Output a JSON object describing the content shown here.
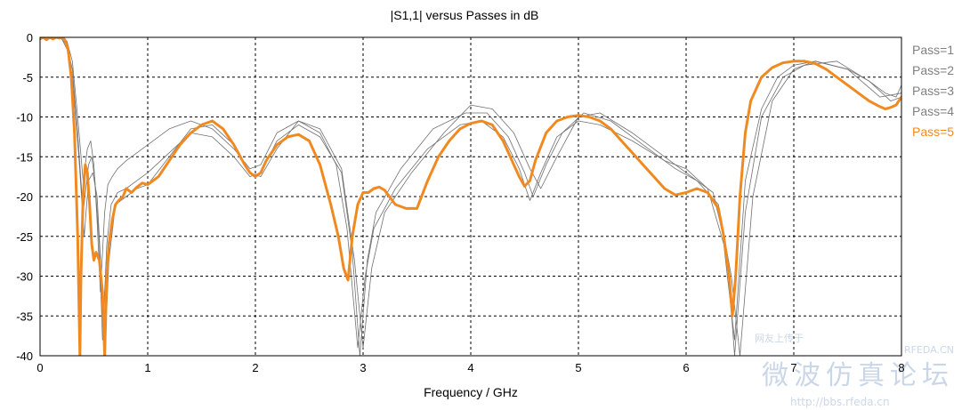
{
  "chart_data": {
    "type": "line",
    "title": "|S1,1| versus Passes in dB",
    "xlabel": "Frequency / GHz",
    "ylabel": "",
    "xlim": [
      0,
      8
    ],
    "ylim": [
      -40,
      0
    ],
    "x_ticks": [
      0,
      1,
      2,
      3,
      4,
      5,
      6,
      7,
      8
    ],
    "y_ticks": [
      0,
      -5,
      -10,
      -15,
      -20,
      -25,
      -30,
      -35,
      -40
    ],
    "x_tick_labels": [
      "0",
      "1",
      "2",
      "3",
      "4",
      "5",
      "6",
      "7",
      "8"
    ],
    "y_tick_labels": [
      "0",
      "-5",
      "-10",
      "-15",
      "-20",
      "-25",
      "-30",
      "-35",
      "-40"
    ],
    "grid": true,
    "legend_position": "right",
    "series": [
      {
        "name": "Pass=1",
        "color": "#707070",
        "width": 0.8,
        "x": [
          0,
          0.1,
          0.2,
          0.25,
          0.3,
          0.35,
          0.4,
          0.44,
          0.47,
          0.5,
          0.53,
          0.56,
          0.6,
          0.63,
          0.67,
          0.72,
          0.8,
          0.9,
          1.0,
          1.2,
          1.4,
          1.6,
          1.8,
          1.95,
          2.05,
          2.2,
          2.4,
          2.6,
          2.75,
          2.85,
          2.95,
          3.02,
          3.1,
          3.3,
          3.6,
          3.9,
          4.1,
          4.3,
          4.45,
          4.55,
          4.65,
          4.8,
          5.0,
          5.2,
          5.5,
          5.8,
          6.0,
          6.2,
          6.35,
          6.45,
          6.55,
          6.7,
          6.85,
          7.0,
          7.2,
          7.5,
          7.7,
          7.85,
          7.95,
          8.0
        ],
        "y": [
          0,
          0,
          0,
          -0.5,
          -3,
          -10,
          -18,
          -14,
          -13,
          -16,
          -23,
          -32,
          -22,
          -18.5,
          -17.5,
          -16.5,
          -15.5,
          -14.5,
          -13.5,
          -11.5,
          -10.5,
          -11.5,
          -14,
          -16.5,
          -16,
          -12,
          -10.5,
          -12,
          -16,
          -24,
          -39,
          -30,
          -24,
          -19,
          -14,
          -11,
          -10.5,
          -12.5,
          -16.5,
          -20.5,
          -17,
          -12.5,
          -10.5,
          -11,
          -13,
          -15.5,
          -16.5,
          -19,
          -26,
          -38,
          -18,
          -9,
          -5,
          -3.5,
          -3,
          -4,
          -5.5,
          -7,
          -7.5,
          -6
        ],
        "visible": true
      },
      {
        "name": "Pass=2",
        "color": "#707070",
        "width": 0.8,
        "x": [
          0,
          0.1,
          0.2,
          0.25,
          0.3,
          0.35,
          0.4,
          0.45,
          0.48,
          0.51,
          0.55,
          0.58,
          0.62,
          0.66,
          0.72,
          0.8,
          0.9,
          1.0,
          1.2,
          1.4,
          1.6,
          1.8,
          1.95,
          2.05,
          2.2,
          2.4,
          2.6,
          2.8,
          2.9,
          2.97,
          3.04,
          3.12,
          3.35,
          3.65,
          3.95,
          4.15,
          4.35,
          4.5,
          4.58,
          4.7,
          4.85,
          5.05,
          5.3,
          5.6,
          5.9,
          6.1,
          6.3,
          6.42,
          6.5,
          6.62,
          6.8,
          7.0,
          7.2,
          7.5,
          7.8,
          8.0
        ],
        "y": [
          0,
          0,
          -0.2,
          -1,
          -4,
          -12,
          -22,
          -16,
          -15,
          -18,
          -26,
          -38,
          -26,
          -21,
          -19.5,
          -19,
          -18,
          -17,
          -14.5,
          -12,
          -12.5,
          -15,
          -17.5,
          -17,
          -13,
          -11,
          -12.5,
          -17,
          -27,
          -40,
          -28,
          -22,
          -16.5,
          -11.5,
          -9.5,
          -9.5,
          -12.5,
          -17,
          -20,
          -16,
          -12,
          -9.5,
          -10.5,
          -13.5,
          -16.5,
          -18,
          -21,
          -30,
          -40,
          -20,
          -8,
          -4,
          -3,
          -4,
          -7.5,
          -7
        ],
        "visible": true
      },
      {
        "name": "Pass=3",
        "color": "#707070",
        "width": 0.8,
        "x": [
          0,
          0.1,
          0.2,
          0.25,
          0.3,
          0.36,
          0.41,
          0.45,
          0.49,
          0.53,
          0.57,
          0.6,
          0.64,
          0.7,
          0.8,
          0.9,
          1.0,
          1.2,
          1.4,
          1.6,
          1.8,
          1.95,
          2.05,
          2.2,
          2.4,
          2.6,
          2.8,
          2.92,
          3.0,
          3.08,
          3.2,
          3.45,
          3.75,
          4.0,
          4.2,
          4.4,
          4.55,
          4.65,
          4.8,
          5.0,
          5.2,
          5.5,
          5.8,
          6.05,
          6.25,
          6.38,
          6.45,
          6.55,
          6.7,
          6.9,
          7.1,
          7.4,
          7.7,
          7.9,
          8.0
        ],
        "y": [
          0,
          0,
          -0.1,
          -1.5,
          -5,
          -15,
          -25,
          -18,
          -17,
          -20,
          -30,
          -40,
          -28,
          -21,
          -20,
          -19,
          -18.5,
          -15,
          -11.5,
          -11,
          -13.5,
          -17,
          -17.5,
          -14,
          -10.5,
          -11.5,
          -16.5,
          -28,
          -39,
          -29,
          -22,
          -17,
          -12,
          -8.5,
          -9,
          -12,
          -16.5,
          -19,
          -15,
          -10,
          -9.5,
          -12,
          -15,
          -17.5,
          -19.5,
          -27,
          -40,
          -22,
          -10,
          -5,
          -3.5,
          -3,
          -5.5,
          -8,
          -7.5
        ],
        "visible": true
      },
      {
        "name": "Pass=4",
        "color": "#808080",
        "width": 0.8,
        "x": [
          0,
          0.1,
          0.2,
          0.25,
          0.3,
          0.36,
          0.4,
          0.44,
          0.48,
          0.52,
          0.56,
          0.59,
          0.62,
          0.68,
          0.8,
          1.0,
          1.2,
          1.4,
          1.6,
          1.8,
          2.0,
          2.2,
          2.4,
          2.6,
          2.75,
          2.85,
          2.95,
          3.1,
          3.3,
          3.5,
          3.8,
          4.1,
          4.3,
          4.5,
          4.7,
          5.0,
          5.3,
          5.6,
          5.9,
          6.1,
          6.3,
          6.42,
          6.5,
          6.6,
          6.75,
          6.9,
          7.1,
          7.3,
          7.5,
          7.7,
          7.9,
          8.0
        ],
        "y": [
          0,
          -0.2,
          -0.1,
          -0.5,
          -4,
          -30,
          -38,
          -17,
          -17.5,
          -22,
          -28,
          -38,
          -28,
          -22,
          -19.5,
          -18.5,
          -17,
          -14,
          -11,
          -12,
          -17.5,
          -14,
          -12,
          -14,
          -20,
          -30,
          -25,
          -19,
          -20,
          -21.5,
          -16,
          -10.5,
          -12,
          -18,
          -13,
          -10,
          -11,
          -15,
          -19,
          -19.5,
          -21,
          -35,
          -15,
          -9,
          -5,
          -3.5,
          -3,
          -3.5,
          -5,
          -7,
          -9,
          -8
        ],
        "visible": false
      },
      {
        "name": "Pass=5",
        "color": "#F08A20",
        "width": 3,
        "x": [
          0,
          0.03,
          0.06,
          0.09,
          0.12,
          0.15,
          0.18,
          0.21,
          0.23,
          0.26,
          0.29,
          0.32,
          0.35,
          0.37,
          0.38,
          0.4,
          0.42,
          0.44,
          0.46,
          0.48,
          0.5,
          0.52,
          0.55,
          0.58,
          0.6,
          0.62,
          0.64,
          0.67,
          0.7,
          0.73,
          0.77,
          0.8,
          0.85,
          0.9,
          0.95,
          1.0,
          1.05,
          1.1,
          1.2,
          1.3,
          1.4,
          1.5,
          1.6,
          1.7,
          1.8,
          1.9,
          1.95,
          2.0,
          2.05,
          2.1,
          2.2,
          2.3,
          2.4,
          2.5,
          2.6,
          2.7,
          2.77,
          2.82,
          2.86,
          2.9,
          2.95,
          3.0,
          3.05,
          3.1,
          3.15,
          3.2,
          3.3,
          3.4,
          3.5,
          3.6,
          3.7,
          3.8,
          3.9,
          4.0,
          4.1,
          4.2,
          4.3,
          4.4,
          4.45,
          4.5,
          4.55,
          4.6,
          4.7,
          4.8,
          4.9,
          5.0,
          5.1,
          5.2,
          5.3,
          5.4,
          5.5,
          5.6,
          5.7,
          5.8,
          5.9,
          6.0,
          6.1,
          6.2,
          6.3,
          6.35,
          6.4,
          6.43,
          6.46,
          6.5,
          6.55,
          6.6,
          6.7,
          6.8,
          6.9,
          7.0,
          7.1,
          7.2,
          7.3,
          7.4,
          7.5,
          7.6,
          7.7,
          7.8,
          7.85,
          7.9,
          7.95,
          8.0
        ],
        "y": [
          -0.2,
          0.1,
          -0.3,
          0.0,
          -0.2,
          0.1,
          -0.1,
          0.1,
          -0.3,
          -1.5,
          -5,
          -12,
          -25,
          -40,
          -30,
          -20,
          -16,
          -17,
          -21,
          -26,
          -28,
          -27,
          -28,
          -32,
          -40,
          -30,
          -26,
          -23,
          -21,
          -20.5,
          -20,
          -19,
          -19.5,
          -18.8,
          -18.3,
          -18.5,
          -18,
          -17.5,
          -15.5,
          -13.5,
          -12,
          -11,
          -10.5,
          -11.5,
          -13.5,
          -16,
          -17,
          -17.5,
          -17,
          -15.5,
          -13.5,
          -12.5,
          -12.2,
          -13,
          -16,
          -21,
          -25,
          -29,
          -30.5,
          -25,
          -21,
          -19.5,
          -19.5,
          -19,
          -18.8,
          -19.2,
          -21,
          -21.5,
          -21.5,
          -18,
          -15,
          -13,
          -11.5,
          -10.8,
          -10.5,
          -11,
          -13,
          -16,
          -17.5,
          -18.7,
          -18,
          -15.5,
          -12,
          -10.5,
          -10,
          -9.8,
          -10,
          -10.5,
          -11.5,
          -13,
          -14.5,
          -16,
          -17.5,
          -19,
          -19.8,
          -19.5,
          -19,
          -19.5,
          -21.5,
          -25,
          -30,
          -35,
          -30,
          -20,
          -12,
          -8,
          -5,
          -3.8,
          -3.2,
          -3.0,
          -3.0,
          -3.3,
          -4,
          -5,
          -6,
          -7,
          -8,
          -8.7,
          -9,
          -8.8,
          -8.5,
          -7.5
        ],
        "visible": true
      }
    ],
    "watermark_text": [
      "RFEDA.CN",
      "微波仿真论坛",
      "http://bbs.rfeda.cn",
      "网友上传于"
    ]
  }
}
